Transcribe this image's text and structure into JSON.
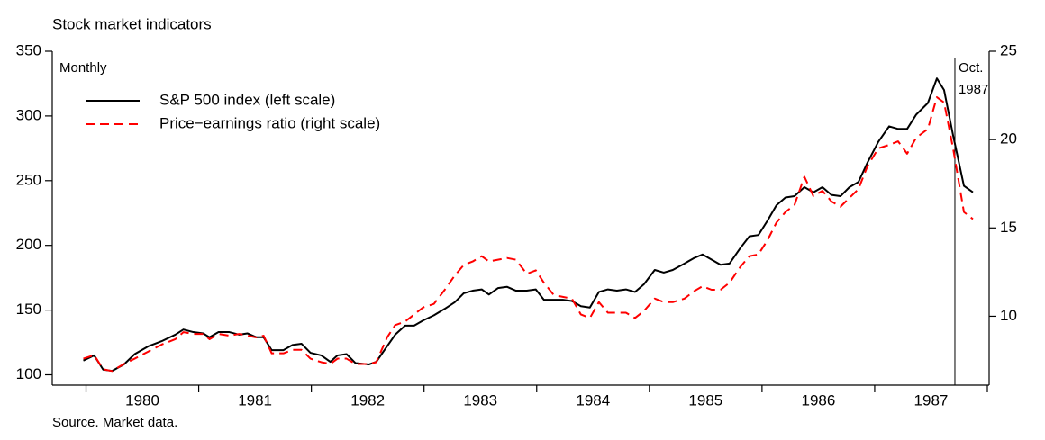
{
  "chart_data": {
    "type": "line",
    "title": "Stock market indicators",
    "subtitle": "Monthly",
    "source": "Source. Market data.",
    "x": [
      1979.976,
      1980.072,
      1980.152,
      1980.232,
      1980.336,
      1980.432,
      1980.552,
      1980.672,
      1980.792,
      1980.864,
      1980.952,
      1981.04,
      1981.096,
      1981.176,
      1981.272,
      1981.36,
      1981.432,
      1981.512,
      1981.576,
      1981.648,
      1981.752,
      1981.832,
      1981.912,
      1981.992,
      1982.088,
      1982.168,
      1982.232,
      1982.312,
      1982.392,
      1982.512,
      1982.576,
      1982.672,
      1982.744,
      1982.832,
      1982.912,
      1982.992,
      1983.088,
      1983.184,
      1983.272,
      1983.352,
      1983.432,
      1983.512,
      1983.576,
      1983.656,
      1983.736,
      1983.816,
      1983.912,
      1983.992,
      1984.064,
      1984.152,
      1984.232,
      1984.312,
      1984.392,
      1984.472,
      1984.552,
      1984.632,
      1984.712,
      1984.792,
      1984.872,
      1984.952,
      1985.048,
      1985.128,
      1985.208,
      1985.312,
      1985.392,
      1985.472,
      1985.552,
      1985.632,
      1985.712,
      1985.808,
      1985.888,
      1985.968,
      1986.048,
      1986.128,
      1986.208,
      1986.288,
      1986.376,
      1986.456,
      1986.536,
      1986.616,
      1986.696,
      1986.776,
      1986.856,
      1986.936,
      1987.032,
      1987.128,
      1987.208,
      1987.288,
      1987.368,
      1987.472,
      1987.552,
      1987.616,
      1987.696,
      1987.792,
      1987.872
    ],
    "series": [
      {
        "name": "S&P 500 index (left scale)",
        "color": "#000000",
        "dash": false,
        "axis": "y",
        "values": [
          111,
          115,
          104,
          103,
          108,
          116,
          122,
          126,
          131,
          135,
          133,
          132,
          129,
          133,
          133,
          131,
          132,
          129,
          129,
          119,
          119,
          123,
          124,
          117,
          115,
          110,
          115,
          116,
          109,
          108,
          110,
          122,
          131,
          138,
          138,
          142,
          146,
          151,
          156,
          163,
          165,
          166,
          162,
          167,
          168,
          165,
          165,
          166,
          158,
          158,
          158,
          157,
          153,
          152,
          164,
          166,
          165,
          166,
          164,
          170,
          181,
          179,
          181,
          186,
          190,
          193,
          189,
          185,
          186,
          198,
          207,
          208,
          219,
          231,
          237,
          238,
          245,
          241,
          245,
          239,
          238,
          245,
          249,
          264,
          280,
          292,
          290,
          290,
          301,
          310,
          329,
          320,
          285,
          246,
          241
        ]
      },
      {
        "name": "Price−earnings ratio (right scale)",
        "color": "#ff0000",
        "dash": true,
        "axis": "y2",
        "values": [
          7.6,
          7.8,
          7.0,
          6.9,
          7.3,
          7.6,
          8.0,
          8.4,
          8.7,
          9.1,
          9.0,
          9.0,
          8.7,
          9.0,
          8.9,
          9.0,
          8.9,
          8.8,
          8.9,
          7.9,
          7.9,
          8.1,
          8.1,
          7.6,
          7.4,
          7.3,
          7.6,
          7.6,
          7.3,
          7.3,
          7.4,
          8.8,
          9.5,
          9.7,
          10.1,
          10.5,
          10.7,
          11.5,
          12.3,
          12.9,
          13.1,
          13.4,
          13.1,
          13.2,
          13.3,
          13.2,
          12.4,
          12.6,
          11.9,
          11.2,
          11.1,
          11.0,
          10.1,
          9.9,
          10.8,
          10.2,
          10.2,
          10.2,
          9.9,
          10.3,
          11.0,
          10.8,
          10.8,
          11.0,
          11.4,
          11.7,
          11.5,
          11.5,
          11.9,
          12.8,
          13.4,
          13.5,
          14.3,
          15.3,
          15.9,
          16.3,
          17.9,
          16.8,
          17.1,
          16.5,
          16.2,
          16.7,
          17.2,
          18.5,
          19.5,
          19.7,
          19.9,
          19.2,
          20.1,
          20.6,
          22.4,
          22.1,
          19.5,
          15.9,
          15.5
        ]
      }
    ],
    "xlim": [
      1979.7,
      1988.016
    ],
    "xticks": [
      1980,
      1981,
      1982,
      1983,
      1984,
      1985,
      1986,
      1987,
      1988
    ],
    "x_labels": [
      1980,
      1981,
      1982,
      1983,
      1984,
      1985,
      1986,
      1987
    ],
    "ylim": [
      92,
      350
    ],
    "yticks": [
      100,
      150,
      200,
      250,
      300,
      350
    ],
    "y2lim": [
      6.1,
      25
    ],
    "y2ticks": [
      10,
      15,
      20,
      25
    ],
    "annotation": {
      "x": 1987.712,
      "lines": [
        "Oct.",
        "1987"
      ]
    },
    "legend": "upper left"
  }
}
